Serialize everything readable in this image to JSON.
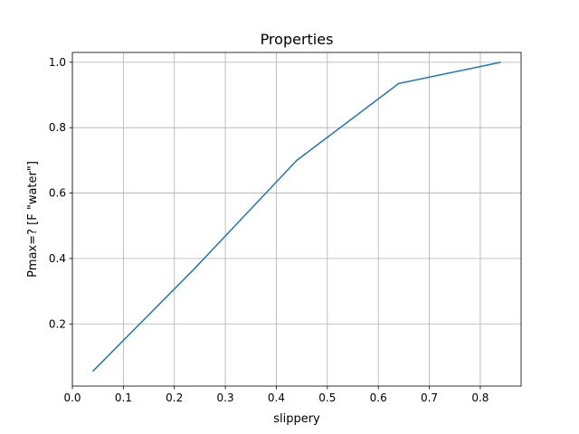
{
  "chart_data": {
    "type": "line",
    "title": "Properties",
    "xlabel": "slippery",
    "ylabel": "Pmax=? [F \"water\"]",
    "xlim": [
      0.0,
      0.88
    ],
    "ylim": [
      0.01,
      1.03
    ],
    "xticks": [
      "0.0",
      "0.1",
      "0.2",
      "0.3",
      "0.4",
      "0.5",
      "0.6",
      "0.7",
      "0.8"
    ],
    "yticks": [
      "0.2",
      "0.4",
      "0.6",
      "0.8",
      "1.0"
    ],
    "grid": true,
    "line_color": "#1f77b4",
    "series": [
      {
        "x": [
          0.04,
          0.24,
          0.44,
          0.64,
          0.84
        ],
        "y": [
          0.055,
          0.37,
          0.7,
          0.935,
          1.0
        ]
      }
    ]
  }
}
